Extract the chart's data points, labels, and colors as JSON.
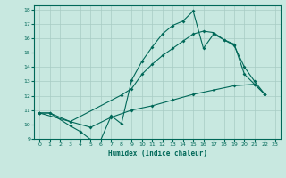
{
  "xlabel": "Humidex (Indice chaleur)",
  "xlim": [
    -0.5,
    23.5
  ],
  "ylim": [
    9,
    18.3
  ],
  "yticks": [
    9,
    10,
    11,
    12,
    13,
    14,
    15,
    16,
    17,
    18
  ],
  "xticks": [
    0,
    1,
    2,
    3,
    4,
    5,
    6,
    7,
    8,
    9,
    10,
    11,
    12,
    13,
    14,
    15,
    16,
    17,
    18,
    19,
    20,
    21,
    22,
    23
  ],
  "bg_color": "#c8e8e0",
  "grid_color": "#a8ccc4",
  "line_color": "#006858",
  "line1_x": [
    0,
    1,
    3,
    4,
    5,
    6,
    7,
    8,
    9,
    10,
    11,
    12,
    13,
    14,
    15,
    16,
    17,
    18,
    19,
    20,
    21,
    22
  ],
  "line1_y": [
    10.8,
    10.8,
    9.9,
    9.5,
    8.95,
    8.95,
    10.6,
    10.05,
    13.1,
    14.4,
    15.4,
    16.3,
    16.9,
    17.2,
    17.9,
    15.3,
    16.3,
    15.9,
    15.6,
    13.5,
    12.8,
    12.1
  ],
  "line2_x": [
    0,
    3,
    8,
    9,
    10,
    11,
    12,
    13,
    14,
    15,
    16,
    17,
    18,
    19,
    20,
    21,
    22
  ],
  "line2_y": [
    10.8,
    10.2,
    12.05,
    12.5,
    13.5,
    14.2,
    14.8,
    15.3,
    15.8,
    16.3,
    16.5,
    16.4,
    15.9,
    15.5,
    14.0,
    13.0,
    12.1
  ],
  "line3_x": [
    0,
    1,
    3,
    5,
    7,
    9,
    11,
    13,
    15,
    17,
    19,
    21,
    22
  ],
  "line3_y": [
    10.8,
    10.8,
    10.2,
    9.8,
    10.5,
    11.0,
    11.3,
    11.7,
    12.1,
    12.4,
    12.7,
    12.8,
    12.1
  ]
}
